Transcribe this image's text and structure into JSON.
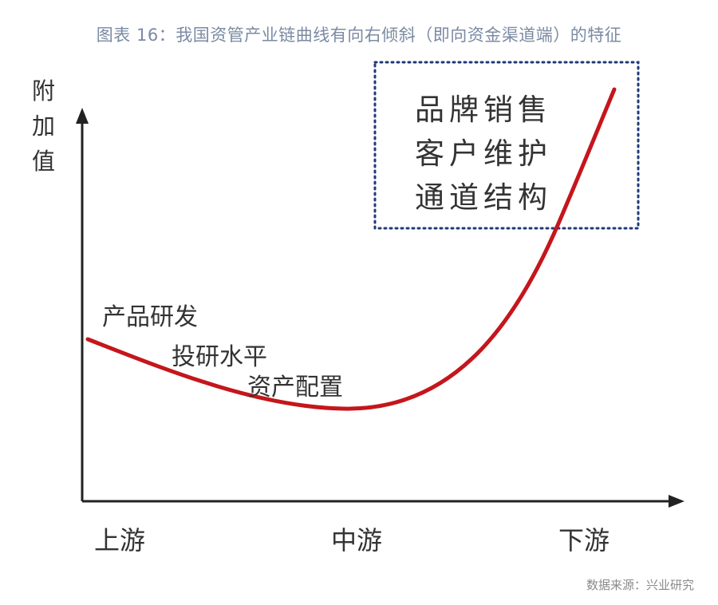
{
  "title": "图表 16：我国资管产业链曲线有向右倾斜（即向资金渠道端）的特征",
  "source": "数据来源：兴业研究",
  "y_axis_label": "附加值",
  "x_labels": {
    "upstream": "上游",
    "midstream": "中游",
    "downstream": "下游"
  },
  "upstream_items": [
    "产品研发",
    "投研水平",
    "资产配置"
  ],
  "downstream_items": [
    "品牌销售",
    "客户维护",
    "通道结构"
  ],
  "colors": {
    "curve": "#c4161c",
    "box_border": "#1f3a78",
    "axis": "#222222",
    "title": "#7b8aa3"
  }
}
